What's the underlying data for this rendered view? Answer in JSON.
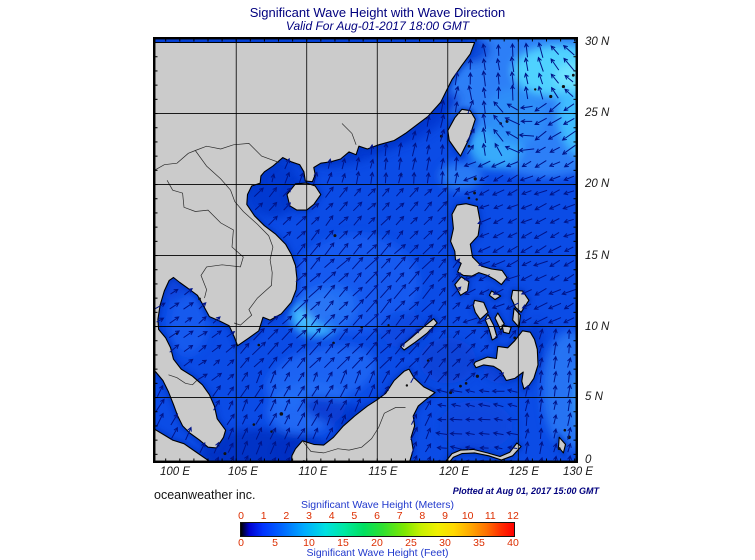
{
  "header": {
    "title": "Significant Wave Height with Wave Direction",
    "subtitle": "Valid For Aug-01-2017 18:00 GMT"
  },
  "map": {
    "lon_labels": [
      "100 E",
      "105 E",
      "110 E",
      "115 E",
      "120 E",
      "125 E",
      "130 E"
    ],
    "lat_labels": [
      "30 N",
      "25 N",
      "20 N",
      "15 N",
      "10 N",
      "5 N",
      "0"
    ],
    "lon_range": [
      100,
      130
    ],
    "lat_range": [
      0,
      30
    ],
    "grid_step_deg": 5,
    "tick_step_deg": 1
  },
  "footer": {
    "brand": "oceanweather inc.",
    "plotted": "Plotted at Aug 01, 2017 15:00 GMT"
  },
  "colorbar": {
    "title_meters": "Significant Wave Height (Meters)",
    "title_feet": "Significant Wave Height (Feet)",
    "meters_ticks": [
      "0",
      "1",
      "2",
      "3",
      "4",
      "5",
      "6",
      "7",
      "8",
      "9",
      "10",
      "11",
      "12"
    ],
    "feet_ticks": [
      "0",
      "5",
      "10",
      "15",
      "20",
      "25",
      "30",
      "35",
      "40"
    ],
    "range_meters": [
      0,
      12
    ],
    "range_feet": [
      0,
      40
    ],
    "gradient": [
      "#000000 0%",
      "#0000d0 3%",
      "#0033ff 8%",
      "#0066ff 15%",
      "#00aaff 23%",
      "#00e0e0 31%",
      "#00e8a0 38%",
      "#00e060 45%",
      "#30e030 52%",
      "#80e800 60%",
      "#c8f000 66%",
      "#f0f000 72%",
      "#ffd800 78%",
      "#ffa800 84%",
      "#ff7000 90%",
      "#ff3000 95%",
      "#ff0000 100%"
    ]
  },
  "flows": [
    {
      "region": "south-china-sea",
      "dir": "NE",
      "angle_deg": 47,
      "length": 15
    },
    {
      "region": "south-scs",
      "dir": "NNE",
      "angle_deg": 62,
      "length": 12
    },
    {
      "region": "gulf-of-thailand",
      "dir": "ENE",
      "angle_deg": 35,
      "length": 10
    },
    {
      "region": "taiwan-strait",
      "dir": "N",
      "angle_deg": 80,
      "length": 11
    },
    {
      "region": "pacific-east-of-philippines",
      "dir": "WSW",
      "angle_deg": 205,
      "length": 12
    },
    {
      "region": "northeast-swirl",
      "dir": "cyclonic",
      "angle_deg": 95,
      "length": 13
    },
    {
      "region": "east-of-mindanao",
      "dir": "N",
      "angle_deg": 80,
      "length": 11
    },
    {
      "region": "celebes-sea",
      "dir": "W",
      "angle_deg": 172,
      "length": 10
    }
  ],
  "colors": {
    "title": "#00007e",
    "land": "#cbcbcb",
    "coastline": "#000000",
    "sea_base": "#0b4ce6",
    "sea_light": "#2a71fb",
    "sea_cyan": "#41bdff",
    "sea_bright_cyan": "#6fdcff",
    "sea_dark": "#0136ce",
    "arrow": "#001488",
    "grid": "#000000",
    "tick_label": "#1a1a1a",
    "scale_number": "#dd2e00",
    "scale_label": "#2038cc"
  }
}
